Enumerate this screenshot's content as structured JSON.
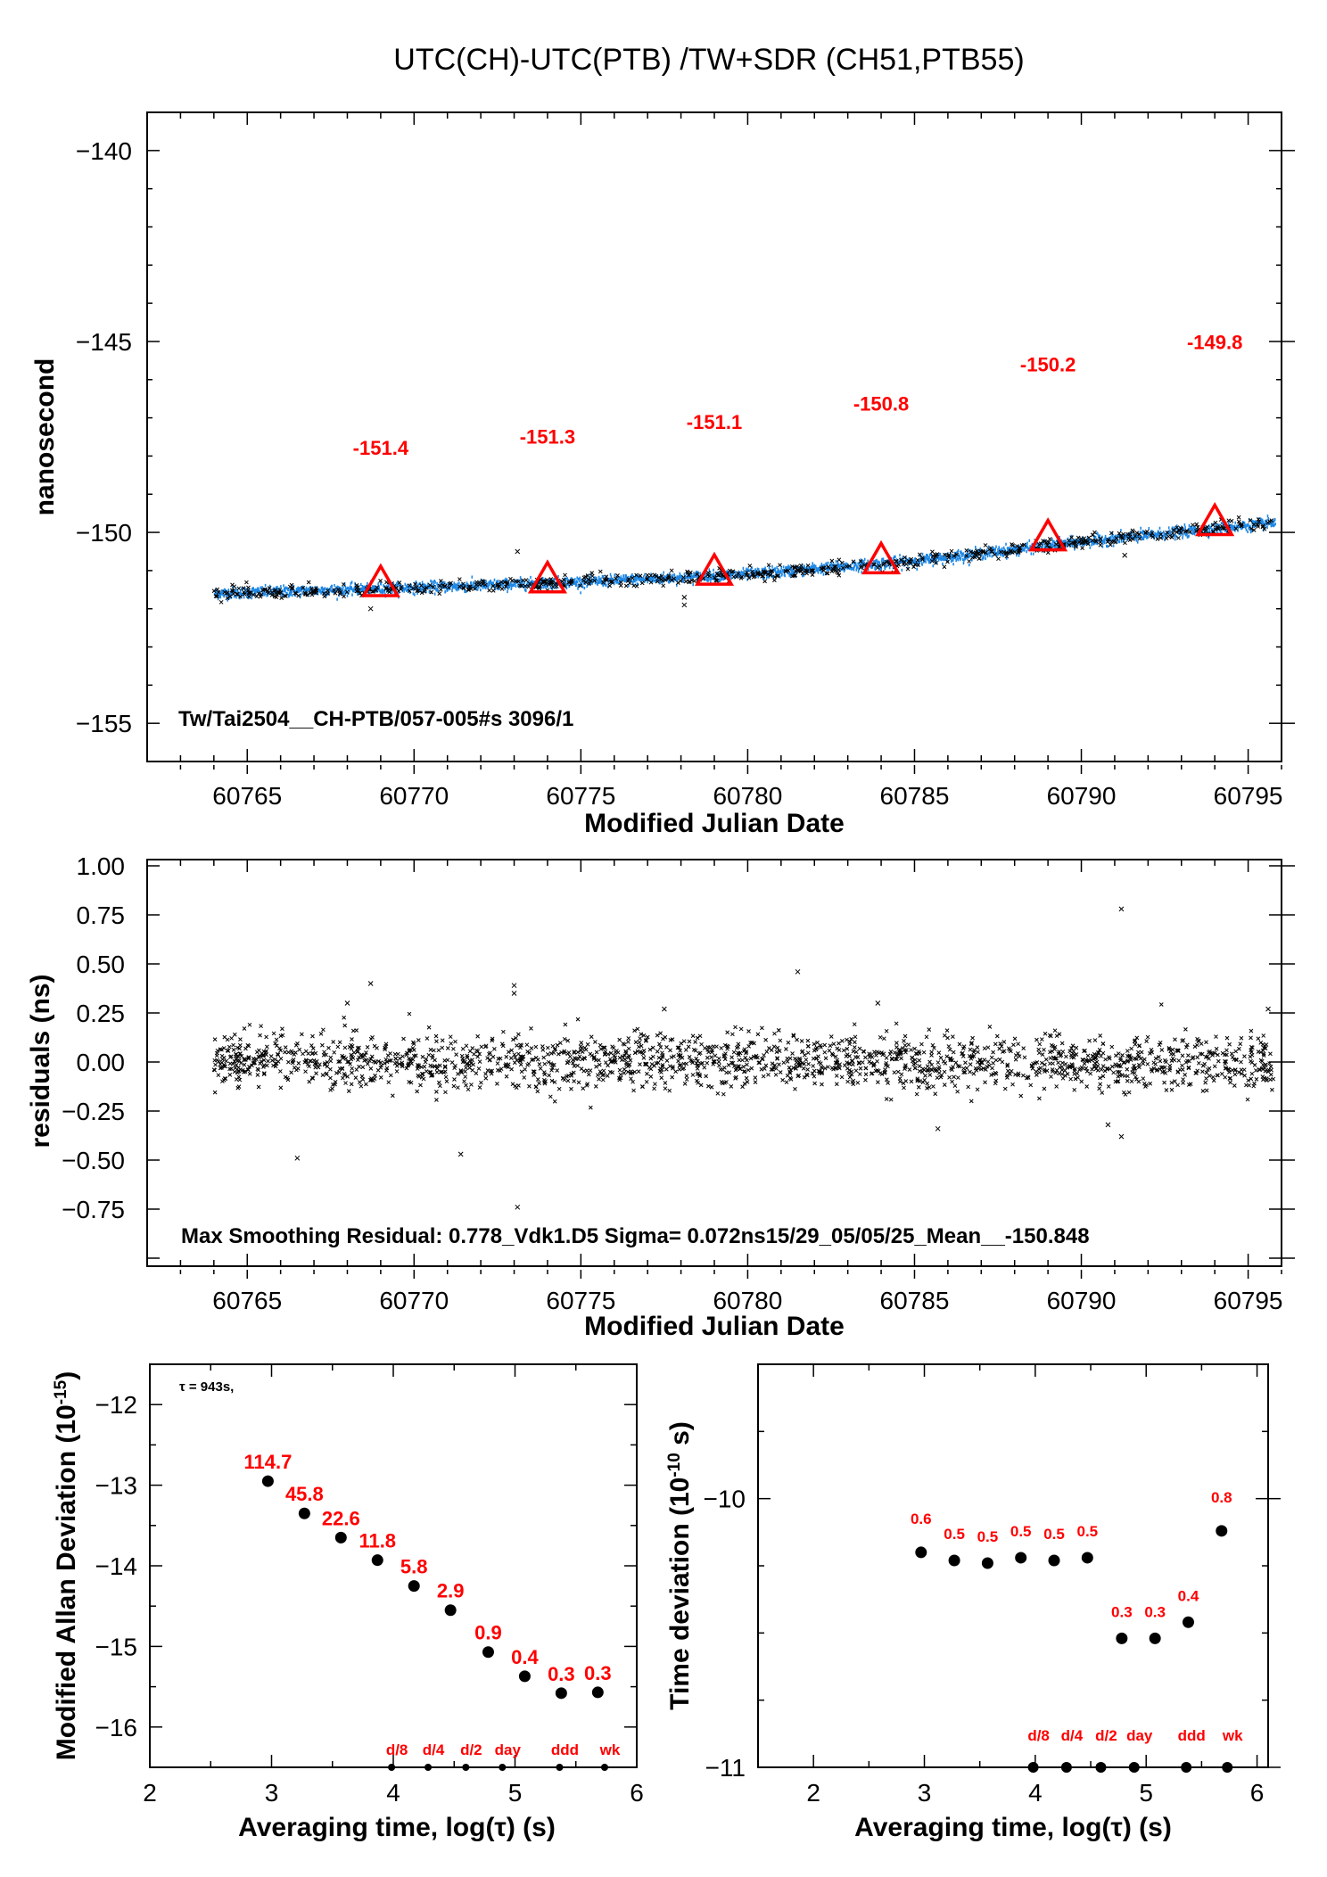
{
  "title": "UTC(CH)-UTC(PTB)  /TW+SDR  (CH51,PTB55)",
  "colors": {
    "data_blue": "#1e88e5",
    "marker_red": "#ff0000",
    "point_black": "#000000"
  },
  "chart_data": [
    {
      "id": "offset",
      "type": "scatter",
      "xlabel": "Modified Julian Date",
      "ylabel": "nanosecond",
      "xlim": [
        60762,
        60796
      ],
      "ylim": [
        -156,
        -139
      ],
      "xticks": [
        60765,
        60770,
        60775,
        60780,
        60785,
        60790,
        60795
      ],
      "yticks": [
        -140,
        -145,
        -150,
        -155
      ],
      "annotation": "Tw/Tai2504__CH-PTB/057-005#s  3096/1",
      "trend": {
        "x": [
          60764,
          60770,
          60775,
          60780,
          60785,
          60790,
          60795.8
        ],
        "y": [
          -151.6,
          -151.45,
          -151.3,
          -151.1,
          -150.75,
          -150.25,
          -149.75
        ]
      },
      "markers": [
        {
          "x": 60769,
          "y": -151.4,
          "label": "-151.4"
        },
        {
          "x": 60774,
          "y": -151.3,
          "label": "-151.3"
        },
        {
          "x": 60779,
          "y": -151.1,
          "label": "-151.1"
        },
        {
          "x": 60784,
          "y": -150.8,
          "label": "-150.8"
        },
        {
          "x": 60789,
          "y": -150.2,
          "label": "-150.2"
        },
        {
          "x": 60794,
          "y": -149.8,
          "label": "-149.8"
        }
      ],
      "outliers": [
        {
          "x": 60768.7,
          "y": -152.0
        },
        {
          "x": 60773.1,
          "y": -150.5
        },
        {
          "x": 60778.1,
          "y": -151.9
        },
        {
          "x": 60778.1,
          "y": -151.7
        },
        {
          "x": 60791.3,
          "y": -150.6
        },
        {
          "x": 60781.5,
          "y": -151.0
        }
      ]
    },
    {
      "id": "residuals",
      "type": "scatter",
      "xlabel": "Modified Julian Date",
      "ylabel": "residuals (ns)",
      "xlim": [
        60762,
        60796
      ],
      "ylim": [
        -1.0,
        1.05
      ],
      "xticks": [
        60765,
        60770,
        60775,
        60780,
        60785,
        60790,
        60795
      ],
      "yticks": [
        "1.00",
        "0.75",
        "0.50",
        "0.25",
        "0.00",
        "-0.25",
        "-0.50",
        "-0.75"
      ],
      "sigma": 0.072,
      "annotation": "Max Smoothing Residual: 0.778_Vdk1.D5  Sigma= 0.072ns15/29_05/05/25_Mean__-150.848",
      "outliers": [
        {
          "x": 60766.5,
          "y": -0.49
        },
        {
          "x": 60768.0,
          "y": 0.3
        },
        {
          "x": 60768.7,
          "y": 0.4
        },
        {
          "x": 60771.4,
          "y": -0.47
        },
        {
          "x": 60773.0,
          "y": 0.39
        },
        {
          "x": 60773.0,
          "y": 0.35
        },
        {
          "x": 60773.1,
          "y": -0.74
        },
        {
          "x": 60781.5,
          "y": 0.46
        },
        {
          "x": 60783.9,
          "y": 0.3
        },
        {
          "x": 60785.7,
          "y": -0.34
        },
        {
          "x": 60791.2,
          "y": 0.78
        },
        {
          "x": 60791.2,
          "y": -0.38
        },
        {
          "x": 60790.8,
          "y": -0.32
        },
        {
          "x": 60795.6,
          "y": 0.27
        },
        {
          "x": 60777.5,
          "y": 0.27
        }
      ]
    },
    {
      "id": "mdev",
      "type": "scatter",
      "xlabel": "Averaging time, log(τ) (s)",
      "ylabel": "Modified Allan Deviation (10",
      "ylabel_sup": "-15",
      "ylabel_end": ")",
      "xlim": [
        2,
        6
      ],
      "ylim": [
        -16.5,
        -11.5
      ],
      "xticks": [
        "2",
        "3",
        "4",
        "5",
        "6"
      ],
      "yticks": [
        "-12",
        "-13",
        "-14",
        "-15",
        "-16"
      ],
      "note": "τ = 943s,",
      "x": [
        2.97,
        3.27,
        3.57,
        3.87,
        4.17,
        4.47,
        4.78,
        5.08,
        5.38,
        5.68
      ],
      "y": [
        -12.95,
        -13.35,
        -13.65,
        -13.93,
        -14.25,
        -14.55,
        -15.07,
        -15.37,
        -15.58,
        -15.57
      ],
      "labels": [
        "114.7",
        "45.8",
        "22.6",
        "11.8",
        "5.8",
        "2.9",
        "0.9",
        "0.4",
        "0.3",
        "0.3"
      ],
      "interval_labels": [
        {
          "x": 4.03,
          "label": "d/8"
        },
        {
          "x": 4.33,
          "label": "d/4"
        },
        {
          "x": 4.64,
          "label": "d/2"
        },
        {
          "x": 4.94,
          "label": "day"
        },
        {
          "x": 5.41,
          "label": "ddd"
        },
        {
          "x": 5.78,
          "label": "wk"
        }
      ]
    },
    {
      "id": "tdev",
      "type": "scatter",
      "xlabel": "Averaging time, log(τ) (s)",
      "ylabel": "Time deviation (10",
      "ylabel_sup": "-10",
      "ylabel_end": " s)",
      "xlim": [
        1.5,
        6.1
      ],
      "ylim": [
        -11,
        -9.5
      ],
      "xticks": [
        "2",
        "3",
        "4",
        "5",
        "6"
      ],
      "yticks": [
        "-10",
        "-11"
      ],
      "x": [
        2.97,
        3.27,
        3.57,
        3.87,
        4.17,
        4.47,
        4.78,
        5.08,
        5.38,
        5.68
      ],
      "y": [
        -10.2,
        -10.23,
        -10.24,
        -10.22,
        -10.23,
        -10.22,
        -10.52,
        -10.52,
        -10.46,
        -10.12
      ],
      "labels": [
        "0.6",
        "0.5",
        "0.5",
        "0.5",
        "0.5",
        "0.5",
        "0.3",
        "0.3",
        "0.4",
        "0.8"
      ],
      "interval_labels": [
        {
          "x": 4.03,
          "label": "d/8"
        },
        {
          "x": 4.33,
          "label": "d/4"
        },
        {
          "x": 4.64,
          "label": "d/2"
        },
        {
          "x": 4.94,
          "label": "day"
        },
        {
          "x": 5.41,
          "label": "ddd"
        },
        {
          "x": 5.78,
          "label": "wk"
        }
      ]
    }
  ]
}
